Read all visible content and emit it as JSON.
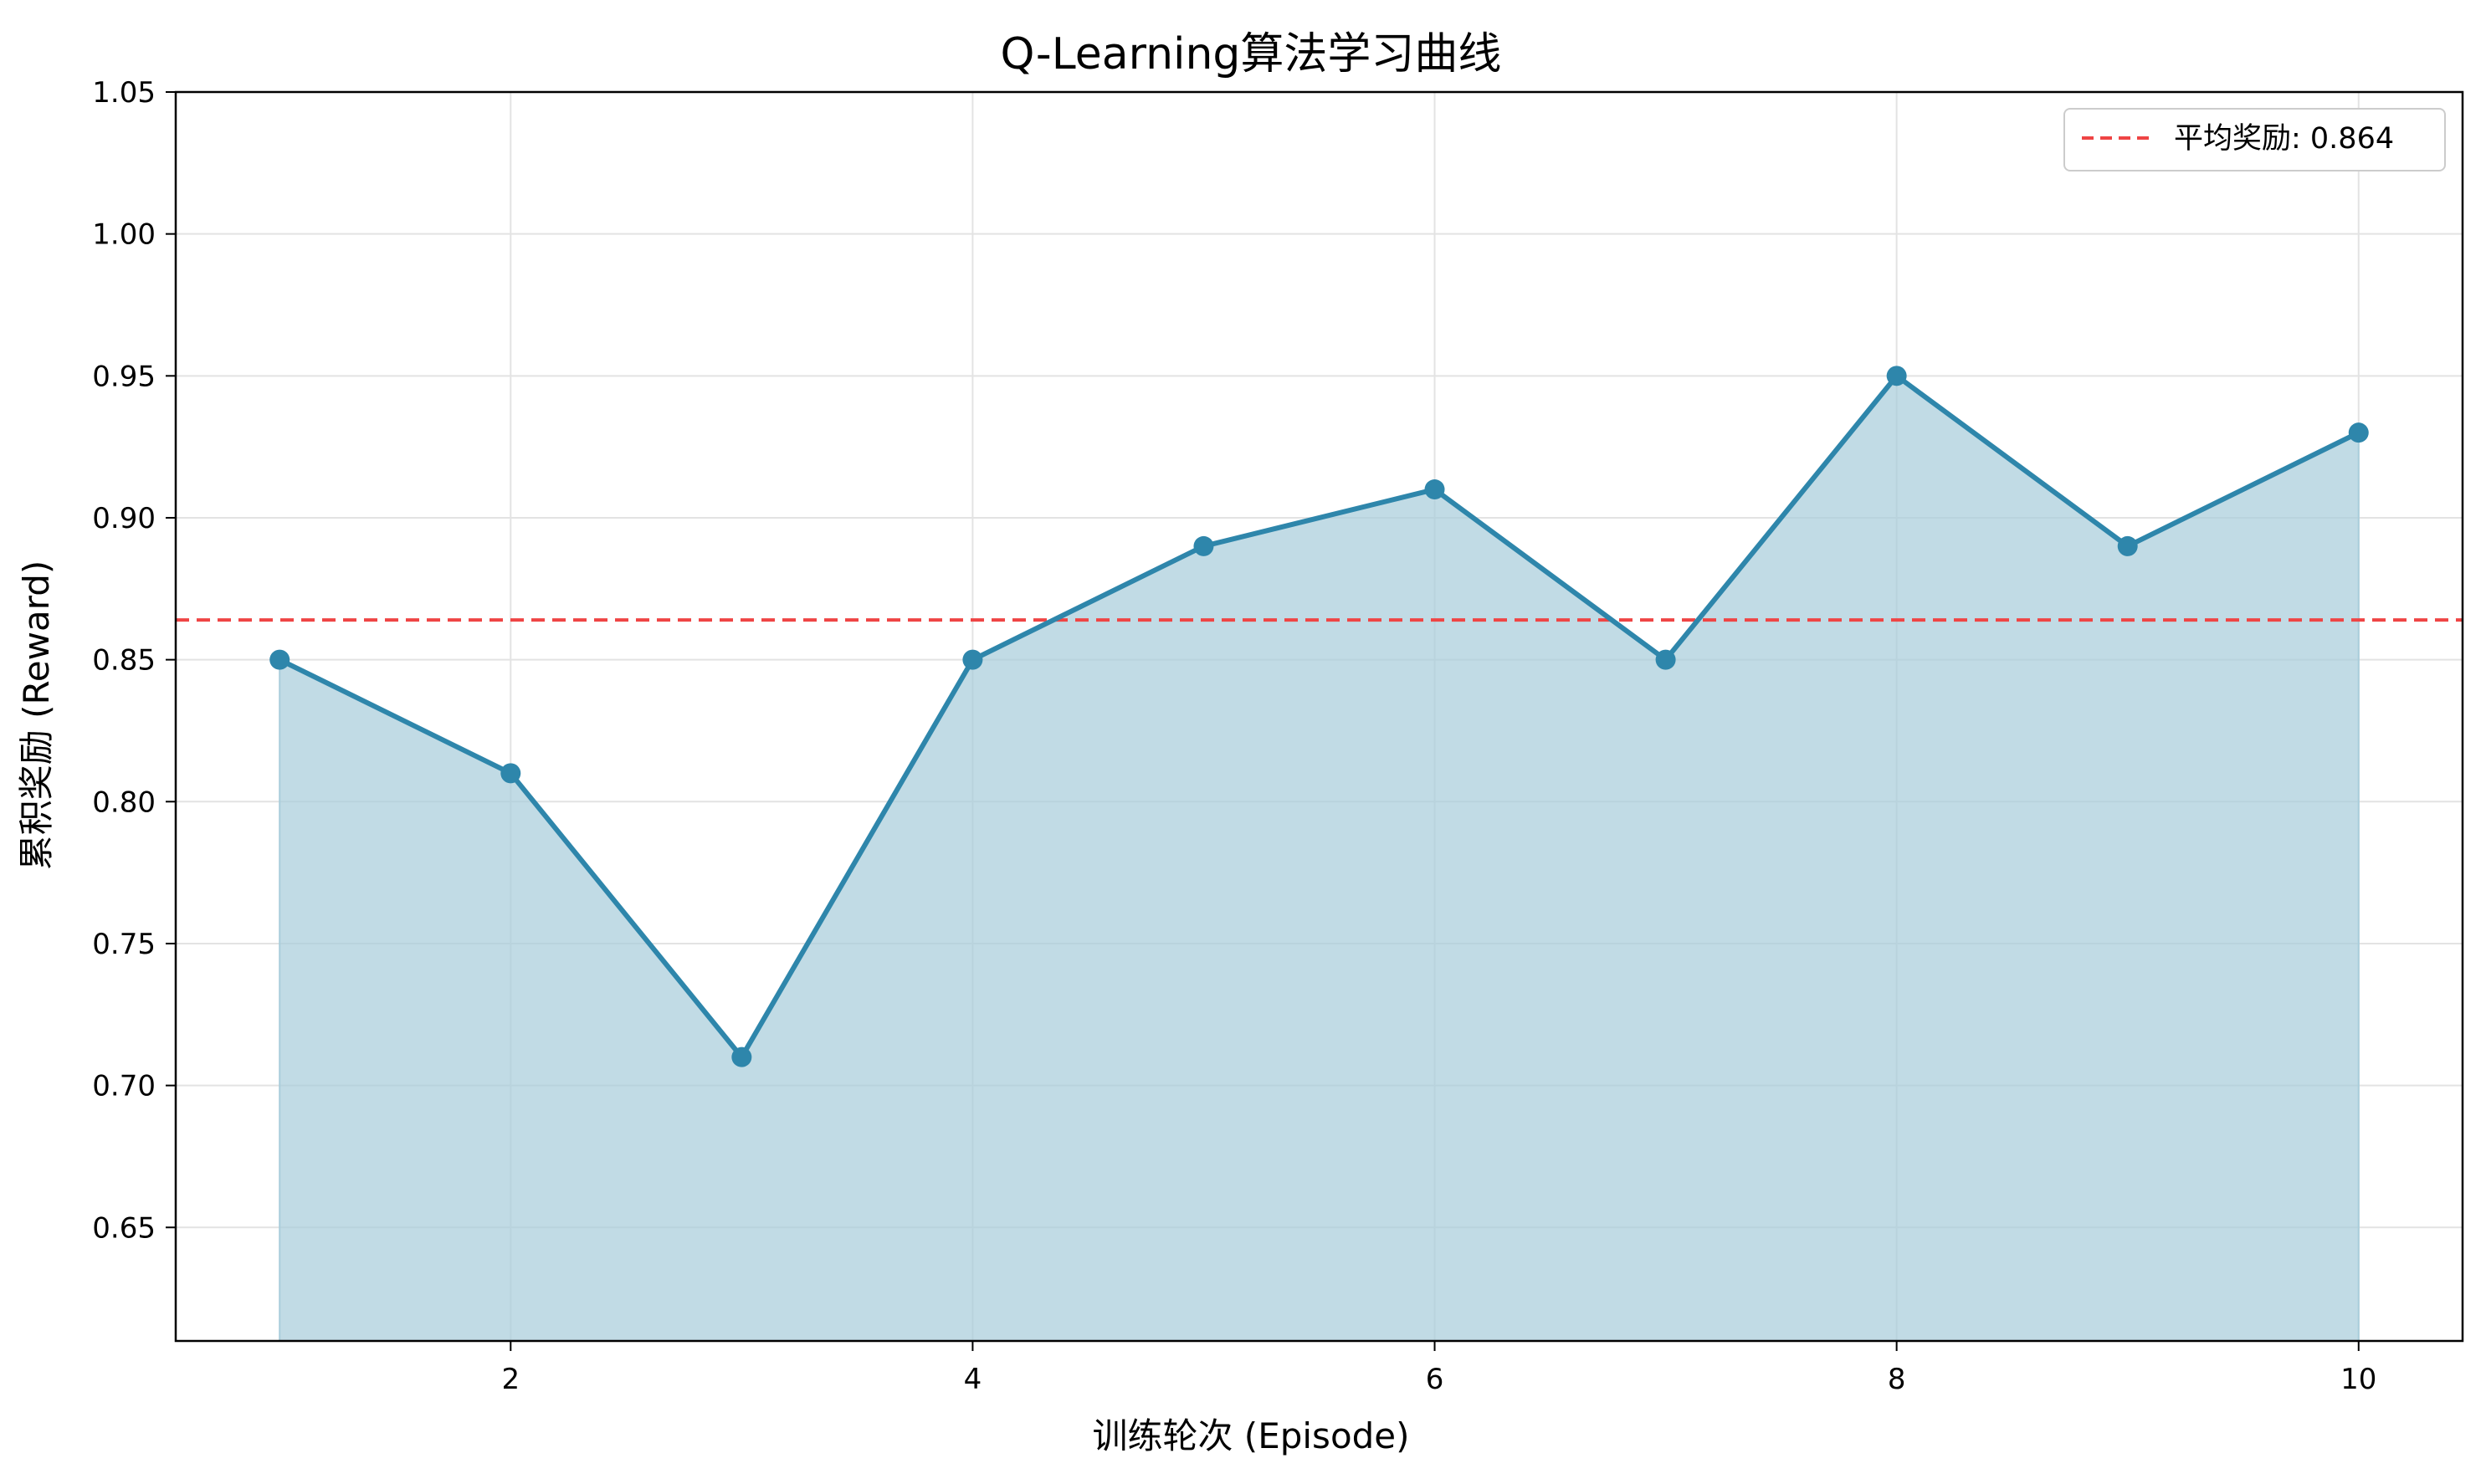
{
  "chart_data": {
    "type": "line",
    "title": "Q-Learning算法学习曲线",
    "xlabel": "训练轮次 (Episode)",
    "ylabel": "累积奖励 (Reward)",
    "x": [
      1,
      2,
      3,
      4,
      5,
      6,
      7,
      8,
      9,
      10
    ],
    "series": [
      {
        "values": [
          0.85,
          0.81,
          0.71,
          0.85,
          0.89,
          0.91,
          0.85,
          0.95,
          0.89,
          0.93
        ],
        "color": "#2e86ab",
        "fill": "#a9cddb",
        "marker": "circle"
      }
    ],
    "reference_line": {
      "y": 0.864,
      "label": "平均奖励: 0.864",
      "color": "#ef4444",
      "style": "dashed"
    },
    "xlim": [
      0.55,
      10.45
    ],
    "ylim": [
      0.61,
      1.05
    ],
    "xticks": [
      2,
      4,
      6,
      8,
      10
    ],
    "xtick_labels": [
      "2",
      "4",
      "6",
      "8",
      "10"
    ],
    "yticks": [
      0.65,
      0.7,
      0.75,
      0.8,
      0.85,
      0.9,
      0.95,
      1.0,
      1.05
    ],
    "ytick_labels": [
      "0.65",
      "0.70",
      "0.75",
      "0.80",
      "0.85",
      "0.90",
      "0.95",
      "1.00",
      "1.05"
    ],
    "grid": true,
    "legend_position": "top-right"
  }
}
